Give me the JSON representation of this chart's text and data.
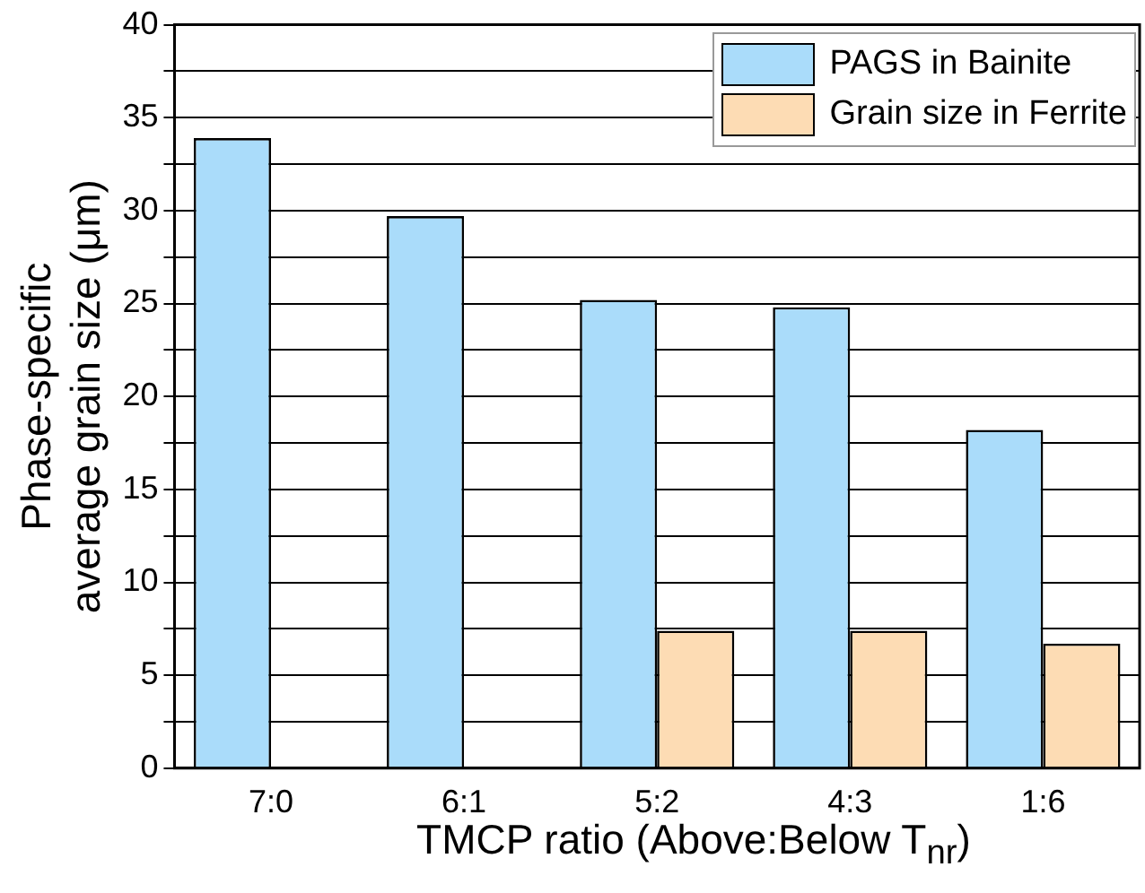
{
  "chart_data": {
    "type": "bar",
    "xlabel": "TMCP ratio (Above:Below T$_{nr}$)",
    "ylabel": "Phase-specific\naverage grain size (μm)",
    "categories": [
      "7:0",
      "6:1",
      "5:2",
      "4:3",
      "1:6"
    ],
    "series": [
      {
        "name": "PAGS in Bainite",
        "color": "#aadcfa",
        "values": [
          33.9,
          29.7,
          25.2,
          24.8,
          18.2
        ]
      },
      {
        "name": "Grain size in Ferrite",
        "color": "#fddcb4",
        "values": [
          null,
          null,
          7.4,
          7.4,
          6.7
        ]
      }
    ],
    "ylim": [
      0,
      40
    ],
    "yticks": [
      0,
      {
        "value": 2.5,
        "label": null
      },
      5,
      {
        "value": 7.5,
        "label": null
      },
      10,
      {
        "value": 12.5,
        "label": null
      },
      15,
      {
        "value": 17.5,
        "label": null
      },
      20,
      {
        "value": 22.5,
        "label": null
      },
      25,
      {
        "value": 27.5,
        "label": null
      },
      30,
      {
        "value": 32.5,
        "label": null
      },
      35,
      {
        "value": 37.5,
        "label": null
      },
      40
    ],
    "grid": "y",
    "legend": "top right"
  }
}
